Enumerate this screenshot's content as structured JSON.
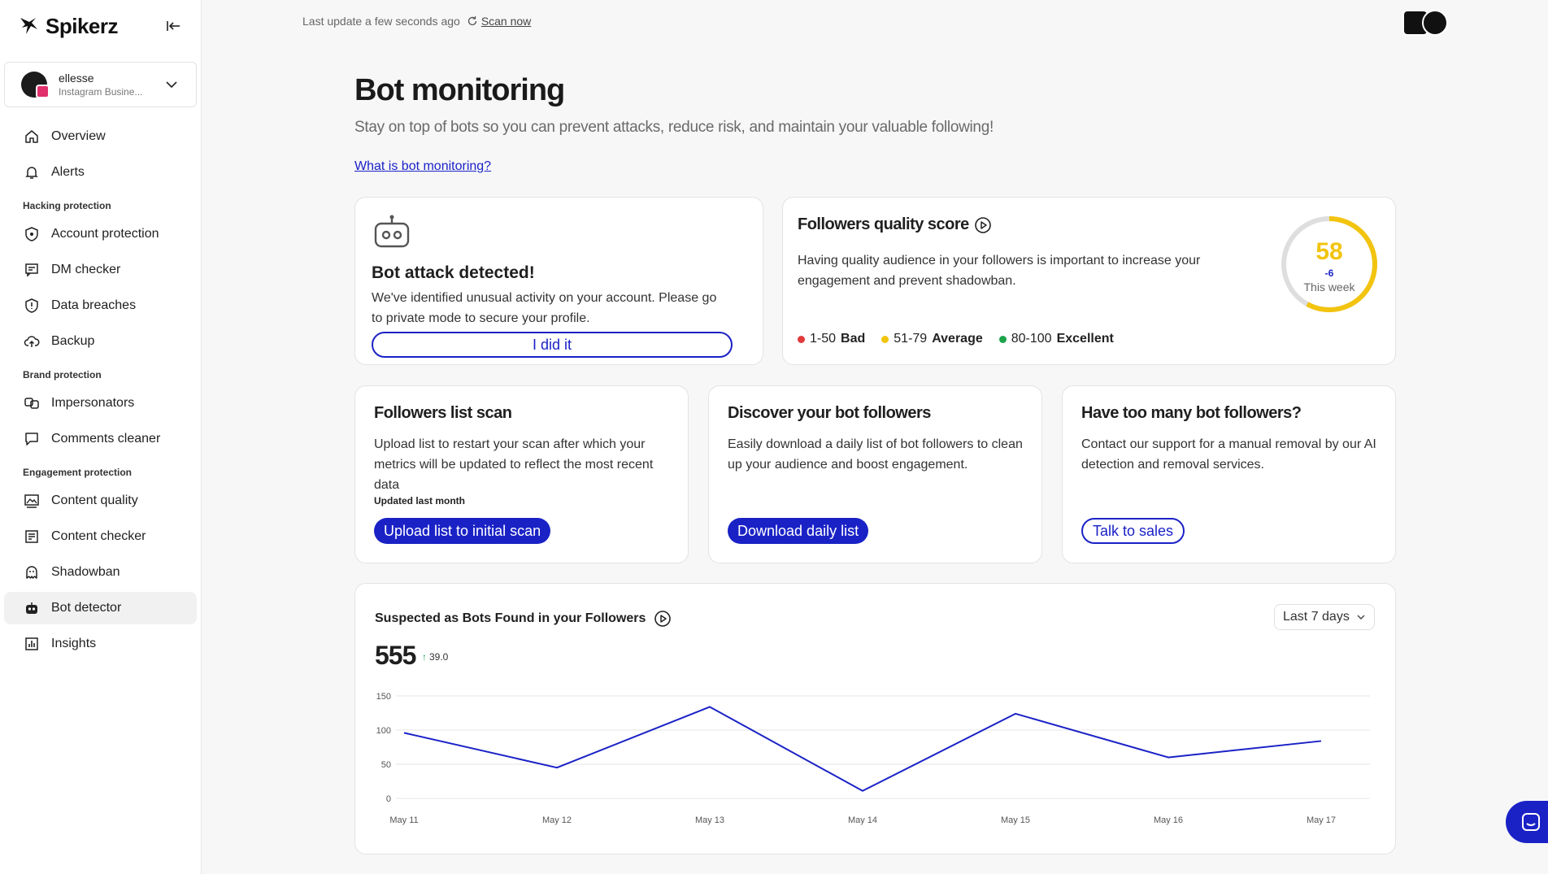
{
  "brand": {
    "name": "Spikerz",
    "accent": "#1a22c6"
  },
  "account": {
    "name": "ellesse",
    "type": "Instagram Busine..."
  },
  "topbar": {
    "last_update": "Last update a few seconds ago",
    "scan_now": "Scan now"
  },
  "sidebar": {
    "items": [
      {
        "label": "Overview",
        "icon": "home-icon"
      },
      {
        "label": "Alerts",
        "icon": "bell-icon"
      }
    ],
    "sections": [
      {
        "title": "Hacking protection",
        "items": [
          {
            "label": "Account protection",
            "icon": "shield-lock-icon"
          },
          {
            "label": "DM checker",
            "icon": "message-check-icon"
          },
          {
            "label": "Data breaches",
            "icon": "shield-alert-icon"
          },
          {
            "label": "Backup",
            "icon": "cloud-upload-icon"
          }
        ]
      },
      {
        "title": "Brand protection",
        "items": [
          {
            "label": "Impersonators",
            "icon": "masks-icon"
          },
          {
            "label": "Comments cleaner",
            "icon": "comment-icon"
          }
        ]
      },
      {
        "title": "Engagement protection",
        "items": [
          {
            "label": "Content quality",
            "icon": "image-quality-icon"
          },
          {
            "label": "Content checker",
            "icon": "content-check-icon"
          },
          {
            "label": "Shadowban",
            "icon": "ghost-icon"
          },
          {
            "label": "Bot detector",
            "icon": "robot-icon",
            "active": true
          },
          {
            "label": "Insights",
            "icon": "chart-icon"
          }
        ]
      }
    ]
  },
  "page": {
    "title": "Bot monitoring",
    "subtitle": "Stay on top of bots so you can prevent attacks, reduce risk, and maintain your valuable following!",
    "what_is_link": "What is bot monitoring?"
  },
  "bot_alert": {
    "title": "Bot attack detected!",
    "description": "We've identified unusual activity on your account. Please go to private mode to secure your profile.",
    "button": "I did it"
  },
  "quality_score": {
    "title": "Followers quality score",
    "description": "Having quality audience in your followers is important to increase your engagement and prevent shadowban.",
    "score": "58",
    "score_fraction": 0.58,
    "delta": "-6",
    "period": "This week",
    "legend": [
      {
        "range": "1-50",
        "label": "Bad",
        "color": "#e03a3a"
      },
      {
        "range": "51-79",
        "label": "Average",
        "color": "#f2c40f"
      },
      {
        "range": "80-100",
        "label": "Excellent",
        "color": "#1aa34a"
      }
    ]
  },
  "cards": [
    {
      "title": "Followers list scan",
      "description": "Upload list to restart your scan after which your metrics will be updated to reflect the most recent data",
      "note": "Updated last month",
      "button": "Upload list to initial scan"
    },
    {
      "title": "Discover your bot followers",
      "description": "Easily download a daily list of bot followers to clean up your audience and boost engagement.",
      "button": "Download daily list"
    },
    {
      "title": "Have too many bot followers?",
      "description": "Contact our support for a manual removal by our AI detection and removal services.",
      "button": "Talk to sales"
    }
  ],
  "bots_chart": {
    "title": "Suspected as Bots Found in your Followers",
    "total": "555",
    "change": "39.0",
    "range": "Last 7 days"
  },
  "chart_data": {
    "type": "line",
    "title": "Suspected as Bots Found in your Followers",
    "categories": [
      "May 11",
      "May 12",
      "May 13",
      "May 14",
      "May 15",
      "May 16",
      "May 17"
    ],
    "values": [
      96,
      45,
      134,
      11,
      124,
      60,
      84
    ],
    "yticks": [
      0,
      50,
      100,
      150
    ],
    "ylim": [
      0,
      150
    ],
    "grid": true,
    "color": "#1a22c6"
  }
}
